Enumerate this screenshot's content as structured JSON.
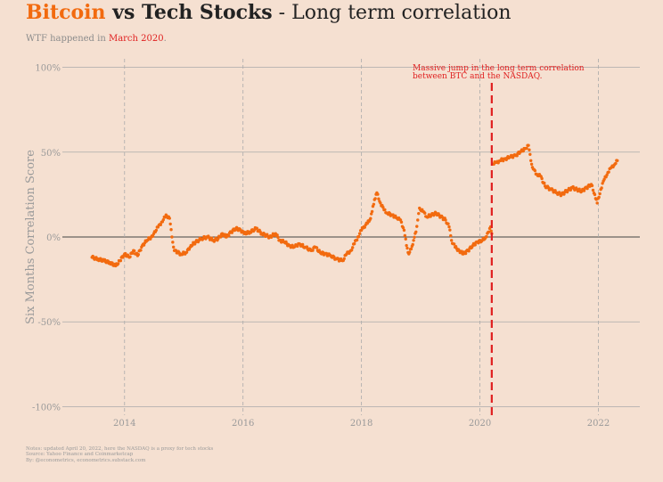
{
  "header": {
    "title_part1": "Bitcoin",
    "title_part2": " vs Tech Stocks",
    "title_part3": " - Long term correlation",
    "subtitle_prefix": "WTF happened in ",
    "subtitle_highlight": "March 2020",
    "subtitle_suffix": "."
  },
  "notes": [
    "Notes: updated April 20, 2022, here the NASDAQ is a proxy for tech stocks",
    "Source: Yahoo Finance and Coinmarketcap",
    "By: @econometrics, econometrics.substack.com"
  ],
  "colors": {
    "accent": "#f26a0f",
    "annotation": "#e02020",
    "background": "#f5e0d1"
  },
  "chart_data": {
    "type": "scatter",
    "title": "",
    "xlabel": "",
    "ylabel": "Six Months Correlation Score",
    "xlim": [
      2012.95,
      2022.7
    ],
    "ylim": [
      -1.05,
      1.05
    ],
    "x_ticks": [
      2014,
      2016,
      2018,
      2020,
      2022
    ],
    "x_tick_labels": [
      "2014",
      "2016",
      "2018",
      "2020",
      "2022"
    ],
    "y_ticks": [
      -1,
      -0.5,
      0,
      0.5,
      1
    ],
    "y_tick_labels": [
      "-100%",
      "-50%",
      "0%",
      "50%",
      "100%"
    ],
    "grid": "vertical dashed at year ticks, horizontal solid at y ticks",
    "event_line": {
      "x": 2020.2
    },
    "annotation": {
      "lines": [
        "Massive jump in the long term correlation",
        "between BTC and the NASDAQ."
      ]
    },
    "series": [
      {
        "color": "#f26a0f",
        "points": [
          [
            2013.45,
            -0.12
          ],
          [
            2013.55,
            -0.13
          ],
          [
            2013.65,
            -0.14
          ],
          [
            2013.75,
            -0.15
          ],
          [
            2013.85,
            -0.17
          ],
          [
            2013.92,
            -0.14
          ],
          [
            2014.0,
            -0.1
          ],
          [
            2014.08,
            -0.12
          ],
          [
            2014.15,
            -0.08
          ],
          [
            2014.22,
            -0.11
          ],
          [
            2014.3,
            -0.05
          ],
          [
            2014.38,
            -0.02
          ],
          [
            2014.45,
            0.0
          ],
          [
            2014.52,
            0.03
          ],
          [
            2014.58,
            0.07
          ],
          [
            2014.64,
            0.09
          ],
          [
            2014.7,
            0.13
          ],
          [
            2014.76,
            0.11
          ],
          [
            2014.8,
            0.0
          ],
          [
            2014.84,
            -0.08
          ],
          [
            2014.95,
            -0.1
          ],
          [
            2015.05,
            -0.09
          ],
          [
            2015.12,
            -0.05
          ],
          [
            2015.2,
            -0.03
          ],
          [
            2015.3,
            -0.01
          ],
          [
            2015.4,
            0.0
          ],
          [
            2015.5,
            -0.02
          ],
          [
            2015.58,
            -0.01
          ],
          [
            2015.65,
            0.02
          ],
          [
            2015.72,
            0.0
          ],
          [
            2015.8,
            0.03
          ],
          [
            2015.88,
            0.05
          ],
          [
            2015.96,
            0.04
          ],
          [
            2016.02,
            0.02
          ],
          [
            2016.12,
            0.03
          ],
          [
            2016.22,
            0.05
          ],
          [
            2016.32,
            0.02
          ],
          [
            2016.45,
            0.0
          ],
          [
            2016.55,
            0.02
          ],
          [
            2016.62,
            -0.02
          ],
          [
            2016.7,
            -0.03
          ],
          [
            2016.78,
            -0.05
          ],
          [
            2016.86,
            -0.06
          ],
          [
            2016.95,
            -0.04
          ],
          [
            2017.05,
            -0.06
          ],
          [
            2017.15,
            -0.08
          ],
          [
            2017.22,
            -0.06
          ],
          [
            2017.3,
            -0.09
          ],
          [
            2017.38,
            -0.1
          ],
          [
            2017.48,
            -0.11
          ],
          [
            2017.58,
            -0.13
          ],
          [
            2017.68,
            -0.14
          ],
          [
            2017.75,
            -0.1
          ],
          [
            2017.82,
            -0.08
          ],
          [
            2017.88,
            -0.04
          ],
          [
            2017.94,
            0.0
          ],
          [
            2018.0,
            0.04
          ],
          [
            2018.04,
            0.06
          ],
          [
            2018.1,
            0.08
          ],
          [
            2018.14,
            0.1
          ],
          [
            2018.18,
            0.15
          ],
          [
            2018.22,
            0.22
          ],
          [
            2018.26,
            0.26
          ],
          [
            2018.32,
            0.2
          ],
          [
            2018.38,
            0.16
          ],
          [
            2018.44,
            0.14
          ],
          [
            2018.52,
            0.13
          ],
          [
            2018.6,
            0.11
          ],
          [
            2018.66,
            0.1
          ],
          [
            2018.72,
            0.04
          ],
          [
            2018.76,
            -0.05
          ],
          [
            2018.8,
            -0.1
          ],
          [
            2018.84,
            -0.07
          ],
          [
            2018.88,
            -0.02
          ],
          [
            2018.92,
            0.03
          ],
          [
            2018.95,
            0.1
          ],
          [
            2018.98,
            0.17
          ],
          [
            2019.04,
            0.15
          ],
          [
            2019.1,
            0.12
          ],
          [
            2019.18,
            0.13
          ],
          [
            2019.26,
            0.14
          ],
          [
            2019.34,
            0.12
          ],
          [
            2019.42,
            0.1
          ],
          [
            2019.48,
            0.06
          ],
          [
            2019.52,
            -0.02
          ],
          [
            2019.58,
            -0.06
          ],
          [
            2019.65,
            -0.08
          ],
          [
            2019.72,
            -0.1
          ],
          [
            2019.8,
            -0.08
          ],
          [
            2019.88,
            -0.05
          ],
          [
            2019.96,
            -0.03
          ],
          [
            2020.04,
            -0.02
          ],
          [
            2020.1,
            0.0
          ],
          [
            2020.15,
            0.03
          ],
          [
            2020.18,
            0.06
          ],
          [
            2020.2,
            0.02
          ],
          [
            2020.22,
            0.43
          ],
          [
            2020.28,
            0.44
          ],
          [
            2020.34,
            0.45
          ],
          [
            2020.42,
            0.46
          ],
          [
            2020.5,
            0.47
          ],
          [
            2020.6,
            0.48
          ],
          [
            2020.68,
            0.5
          ],
          [
            2020.76,
            0.52
          ],
          [
            2020.82,
            0.54
          ],
          [
            2020.86,
            0.45
          ],
          [
            2020.9,
            0.4
          ],
          [
            2020.96,
            0.37
          ],
          [
            2021.02,
            0.36
          ],
          [
            2021.1,
            0.3
          ],
          [
            2021.2,
            0.28
          ],
          [
            2021.3,
            0.26
          ],
          [
            2021.38,
            0.25
          ],
          [
            2021.46,
            0.27
          ],
          [
            2021.56,
            0.29
          ],
          [
            2021.64,
            0.28
          ],
          [
            2021.72,
            0.27
          ],
          [
            2021.8,
            0.29
          ],
          [
            2021.88,
            0.31
          ],
          [
            2021.94,
            0.25
          ],
          [
            2021.98,
            0.2
          ],
          [
            2022.04,
            0.28
          ],
          [
            2022.1,
            0.34
          ],
          [
            2022.16,
            0.38
          ],
          [
            2022.22,
            0.41
          ],
          [
            2022.28,
            0.43
          ],
          [
            2022.32,
            0.45
          ]
        ]
      }
    ]
  }
}
